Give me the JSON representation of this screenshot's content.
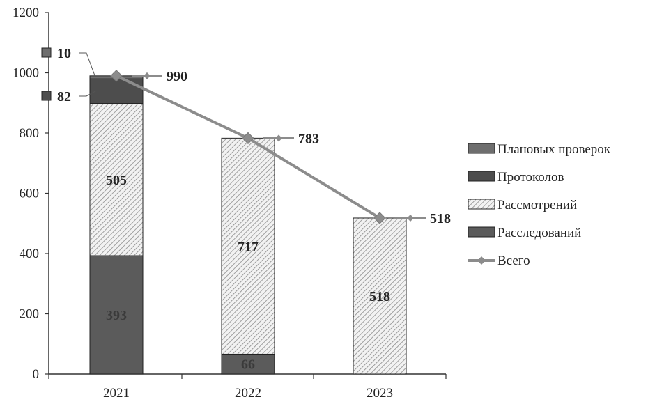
{
  "chart_data": {
    "type": "bar",
    "stacked": true,
    "categories": [
      "2021",
      "2022",
      "2023"
    ],
    "ylim": [
      0,
      1200
    ],
    "yticks": [
      0,
      200,
      400,
      600,
      800,
      1000,
      1200
    ],
    "grid": false,
    "legend_position": "right",
    "series": [
      {
        "name": "Расследований",
        "values": [
          393,
          66,
          0
        ],
        "color": "#5b5b5b",
        "pattern": "solid"
      },
      {
        "name": "Рассмотрений",
        "values": [
          505,
          717,
          518
        ],
        "color": "#d9d9d9",
        "pattern": "hatch"
      },
      {
        "name": "Протоколов",
        "values": [
          82,
          0,
          0
        ],
        "color": "#4d4d4d",
        "pattern": "solid"
      },
      {
        "name": "Плановых проверок",
        "values": [
          10,
          0,
          0
        ],
        "color": "#6e6e6e",
        "pattern": "solid"
      }
    ],
    "total_series": {
      "name": "Всего",
      "values": [
        990,
        783,
        518
      ],
      "color": "#8c8c8c"
    },
    "legend_order": [
      "Плановых проверок",
      "Протоколов",
      "Рассмотрений",
      "Расследований",
      "Всего"
    ],
    "data_labels": [
      {
        "series": "Расследований",
        "category": "2021",
        "text": "393"
      },
      {
        "series": "Рассмотрений",
        "category": "2021",
        "text": "505"
      },
      {
        "series": "Протоколов",
        "category": "2021",
        "text": "82"
      },
      {
        "series": "Плановых проверок",
        "category": "2021",
        "text": "10"
      },
      {
        "series": "Расследований",
        "category": "2022",
        "text": "66"
      },
      {
        "series": "Рассмотрений",
        "category": "2022",
        "text": "717"
      },
      {
        "series": "Рассмотрений",
        "category": "2023",
        "text": "518"
      },
      {
        "series": "Всего",
        "category": "2021",
        "text": "990"
      },
      {
        "series": "Всего",
        "category": "2022",
        "text": "783"
      },
      {
        "series": "Всего",
        "category": "2023",
        "text": "518"
      }
    ]
  }
}
